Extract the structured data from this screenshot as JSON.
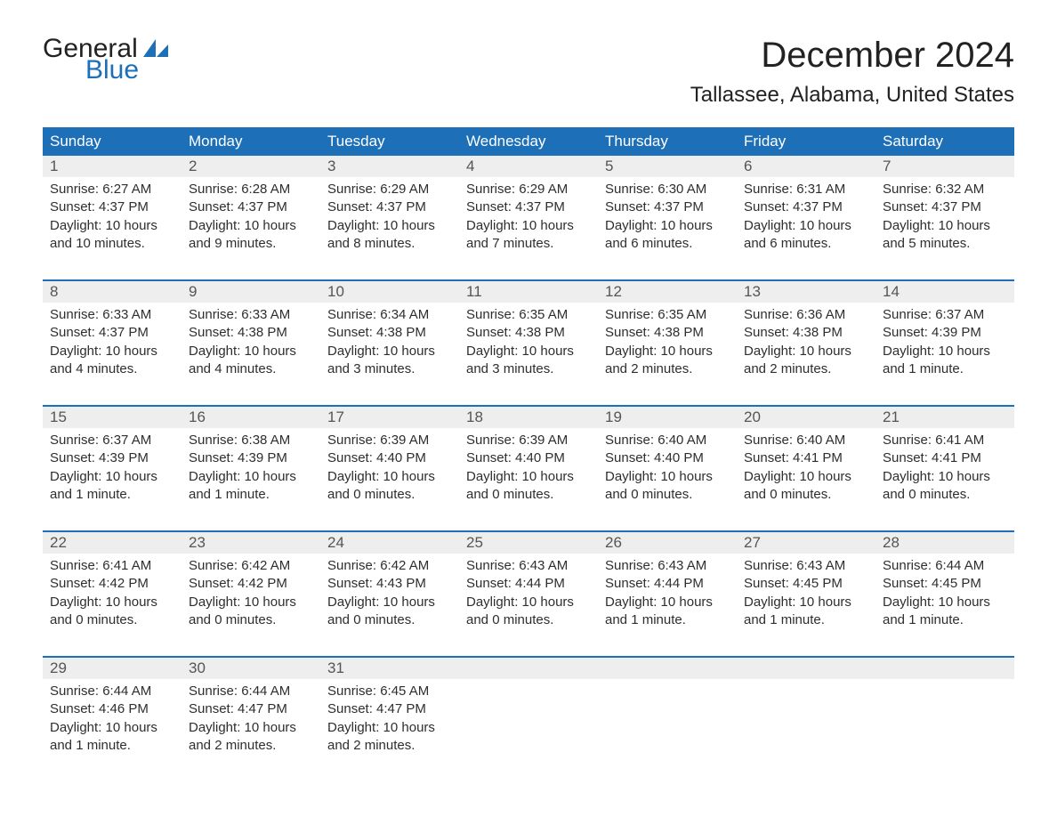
{
  "logo": {
    "text1": "General",
    "text2": "Blue",
    "shape_color": "#1d6fb8"
  },
  "title": "December 2024",
  "location": "Tallassee, Alabama, United States",
  "colors": {
    "header_bg": "#1d6fb8",
    "header_text": "#ffffff",
    "daynum_bg": "#eeeeee",
    "week_border": "#1d6fb8",
    "body_text": "#2e2e2e",
    "background": "#ffffff"
  },
  "fonts": {
    "title_size_pt": 30,
    "location_size_pt": 18,
    "weekday_size_pt": 13,
    "daynum_size_pt": 13,
    "body_size_pt": 11
  },
  "layout": {
    "columns": 7,
    "rows": 5,
    "column_headers_bg": "#1d6fb8"
  },
  "weekdays": [
    "Sunday",
    "Monday",
    "Tuesday",
    "Wednesday",
    "Thursday",
    "Friday",
    "Saturday"
  ],
  "labels": {
    "sunrise": "Sunrise:",
    "sunset": "Sunset:",
    "daylight": "Daylight:"
  },
  "days": [
    {
      "n": 1,
      "sunrise": "6:27 AM",
      "sunset": "4:37 PM",
      "daylight": "10 hours and 10 minutes."
    },
    {
      "n": 2,
      "sunrise": "6:28 AM",
      "sunset": "4:37 PM",
      "daylight": "10 hours and 9 minutes."
    },
    {
      "n": 3,
      "sunrise": "6:29 AM",
      "sunset": "4:37 PM",
      "daylight": "10 hours and 8 minutes."
    },
    {
      "n": 4,
      "sunrise": "6:29 AM",
      "sunset": "4:37 PM",
      "daylight": "10 hours and 7 minutes."
    },
    {
      "n": 5,
      "sunrise": "6:30 AM",
      "sunset": "4:37 PM",
      "daylight": "10 hours and 6 minutes."
    },
    {
      "n": 6,
      "sunrise": "6:31 AM",
      "sunset": "4:37 PM",
      "daylight": "10 hours and 6 minutes."
    },
    {
      "n": 7,
      "sunrise": "6:32 AM",
      "sunset": "4:37 PM",
      "daylight": "10 hours and 5 minutes."
    },
    {
      "n": 8,
      "sunrise": "6:33 AM",
      "sunset": "4:37 PM",
      "daylight": "10 hours and 4 minutes."
    },
    {
      "n": 9,
      "sunrise": "6:33 AM",
      "sunset": "4:38 PM",
      "daylight": "10 hours and 4 minutes."
    },
    {
      "n": 10,
      "sunrise": "6:34 AM",
      "sunset": "4:38 PM",
      "daylight": "10 hours and 3 minutes."
    },
    {
      "n": 11,
      "sunrise": "6:35 AM",
      "sunset": "4:38 PM",
      "daylight": "10 hours and 3 minutes."
    },
    {
      "n": 12,
      "sunrise": "6:35 AM",
      "sunset": "4:38 PM",
      "daylight": "10 hours and 2 minutes."
    },
    {
      "n": 13,
      "sunrise": "6:36 AM",
      "sunset": "4:38 PM",
      "daylight": "10 hours and 2 minutes."
    },
    {
      "n": 14,
      "sunrise": "6:37 AM",
      "sunset": "4:39 PM",
      "daylight": "10 hours and 1 minute."
    },
    {
      "n": 15,
      "sunrise": "6:37 AM",
      "sunset": "4:39 PM",
      "daylight": "10 hours and 1 minute."
    },
    {
      "n": 16,
      "sunrise": "6:38 AM",
      "sunset": "4:39 PM",
      "daylight": "10 hours and 1 minute."
    },
    {
      "n": 17,
      "sunrise": "6:39 AM",
      "sunset": "4:40 PM",
      "daylight": "10 hours and 0 minutes."
    },
    {
      "n": 18,
      "sunrise": "6:39 AM",
      "sunset": "4:40 PM",
      "daylight": "10 hours and 0 minutes."
    },
    {
      "n": 19,
      "sunrise": "6:40 AM",
      "sunset": "4:40 PM",
      "daylight": "10 hours and 0 minutes."
    },
    {
      "n": 20,
      "sunrise": "6:40 AM",
      "sunset": "4:41 PM",
      "daylight": "10 hours and 0 minutes."
    },
    {
      "n": 21,
      "sunrise": "6:41 AM",
      "sunset": "4:41 PM",
      "daylight": "10 hours and 0 minutes."
    },
    {
      "n": 22,
      "sunrise": "6:41 AM",
      "sunset": "4:42 PM",
      "daylight": "10 hours and 0 minutes."
    },
    {
      "n": 23,
      "sunrise": "6:42 AM",
      "sunset": "4:42 PM",
      "daylight": "10 hours and 0 minutes."
    },
    {
      "n": 24,
      "sunrise": "6:42 AM",
      "sunset": "4:43 PM",
      "daylight": "10 hours and 0 minutes."
    },
    {
      "n": 25,
      "sunrise": "6:43 AM",
      "sunset": "4:44 PM",
      "daylight": "10 hours and 0 minutes."
    },
    {
      "n": 26,
      "sunrise": "6:43 AM",
      "sunset": "4:44 PM",
      "daylight": "10 hours and 1 minute."
    },
    {
      "n": 27,
      "sunrise": "6:43 AM",
      "sunset": "4:45 PM",
      "daylight": "10 hours and 1 minute."
    },
    {
      "n": 28,
      "sunrise": "6:44 AM",
      "sunset": "4:45 PM",
      "daylight": "10 hours and 1 minute."
    },
    {
      "n": 29,
      "sunrise": "6:44 AM",
      "sunset": "4:46 PM",
      "daylight": "10 hours and 1 minute."
    },
    {
      "n": 30,
      "sunrise": "6:44 AM",
      "sunset": "4:47 PM",
      "daylight": "10 hours and 2 minutes."
    },
    {
      "n": 31,
      "sunrise": "6:45 AM",
      "sunset": "4:47 PM",
      "daylight": "10 hours and 2 minutes."
    }
  ],
  "start_weekday_index": 0,
  "trailing_empty": 4
}
